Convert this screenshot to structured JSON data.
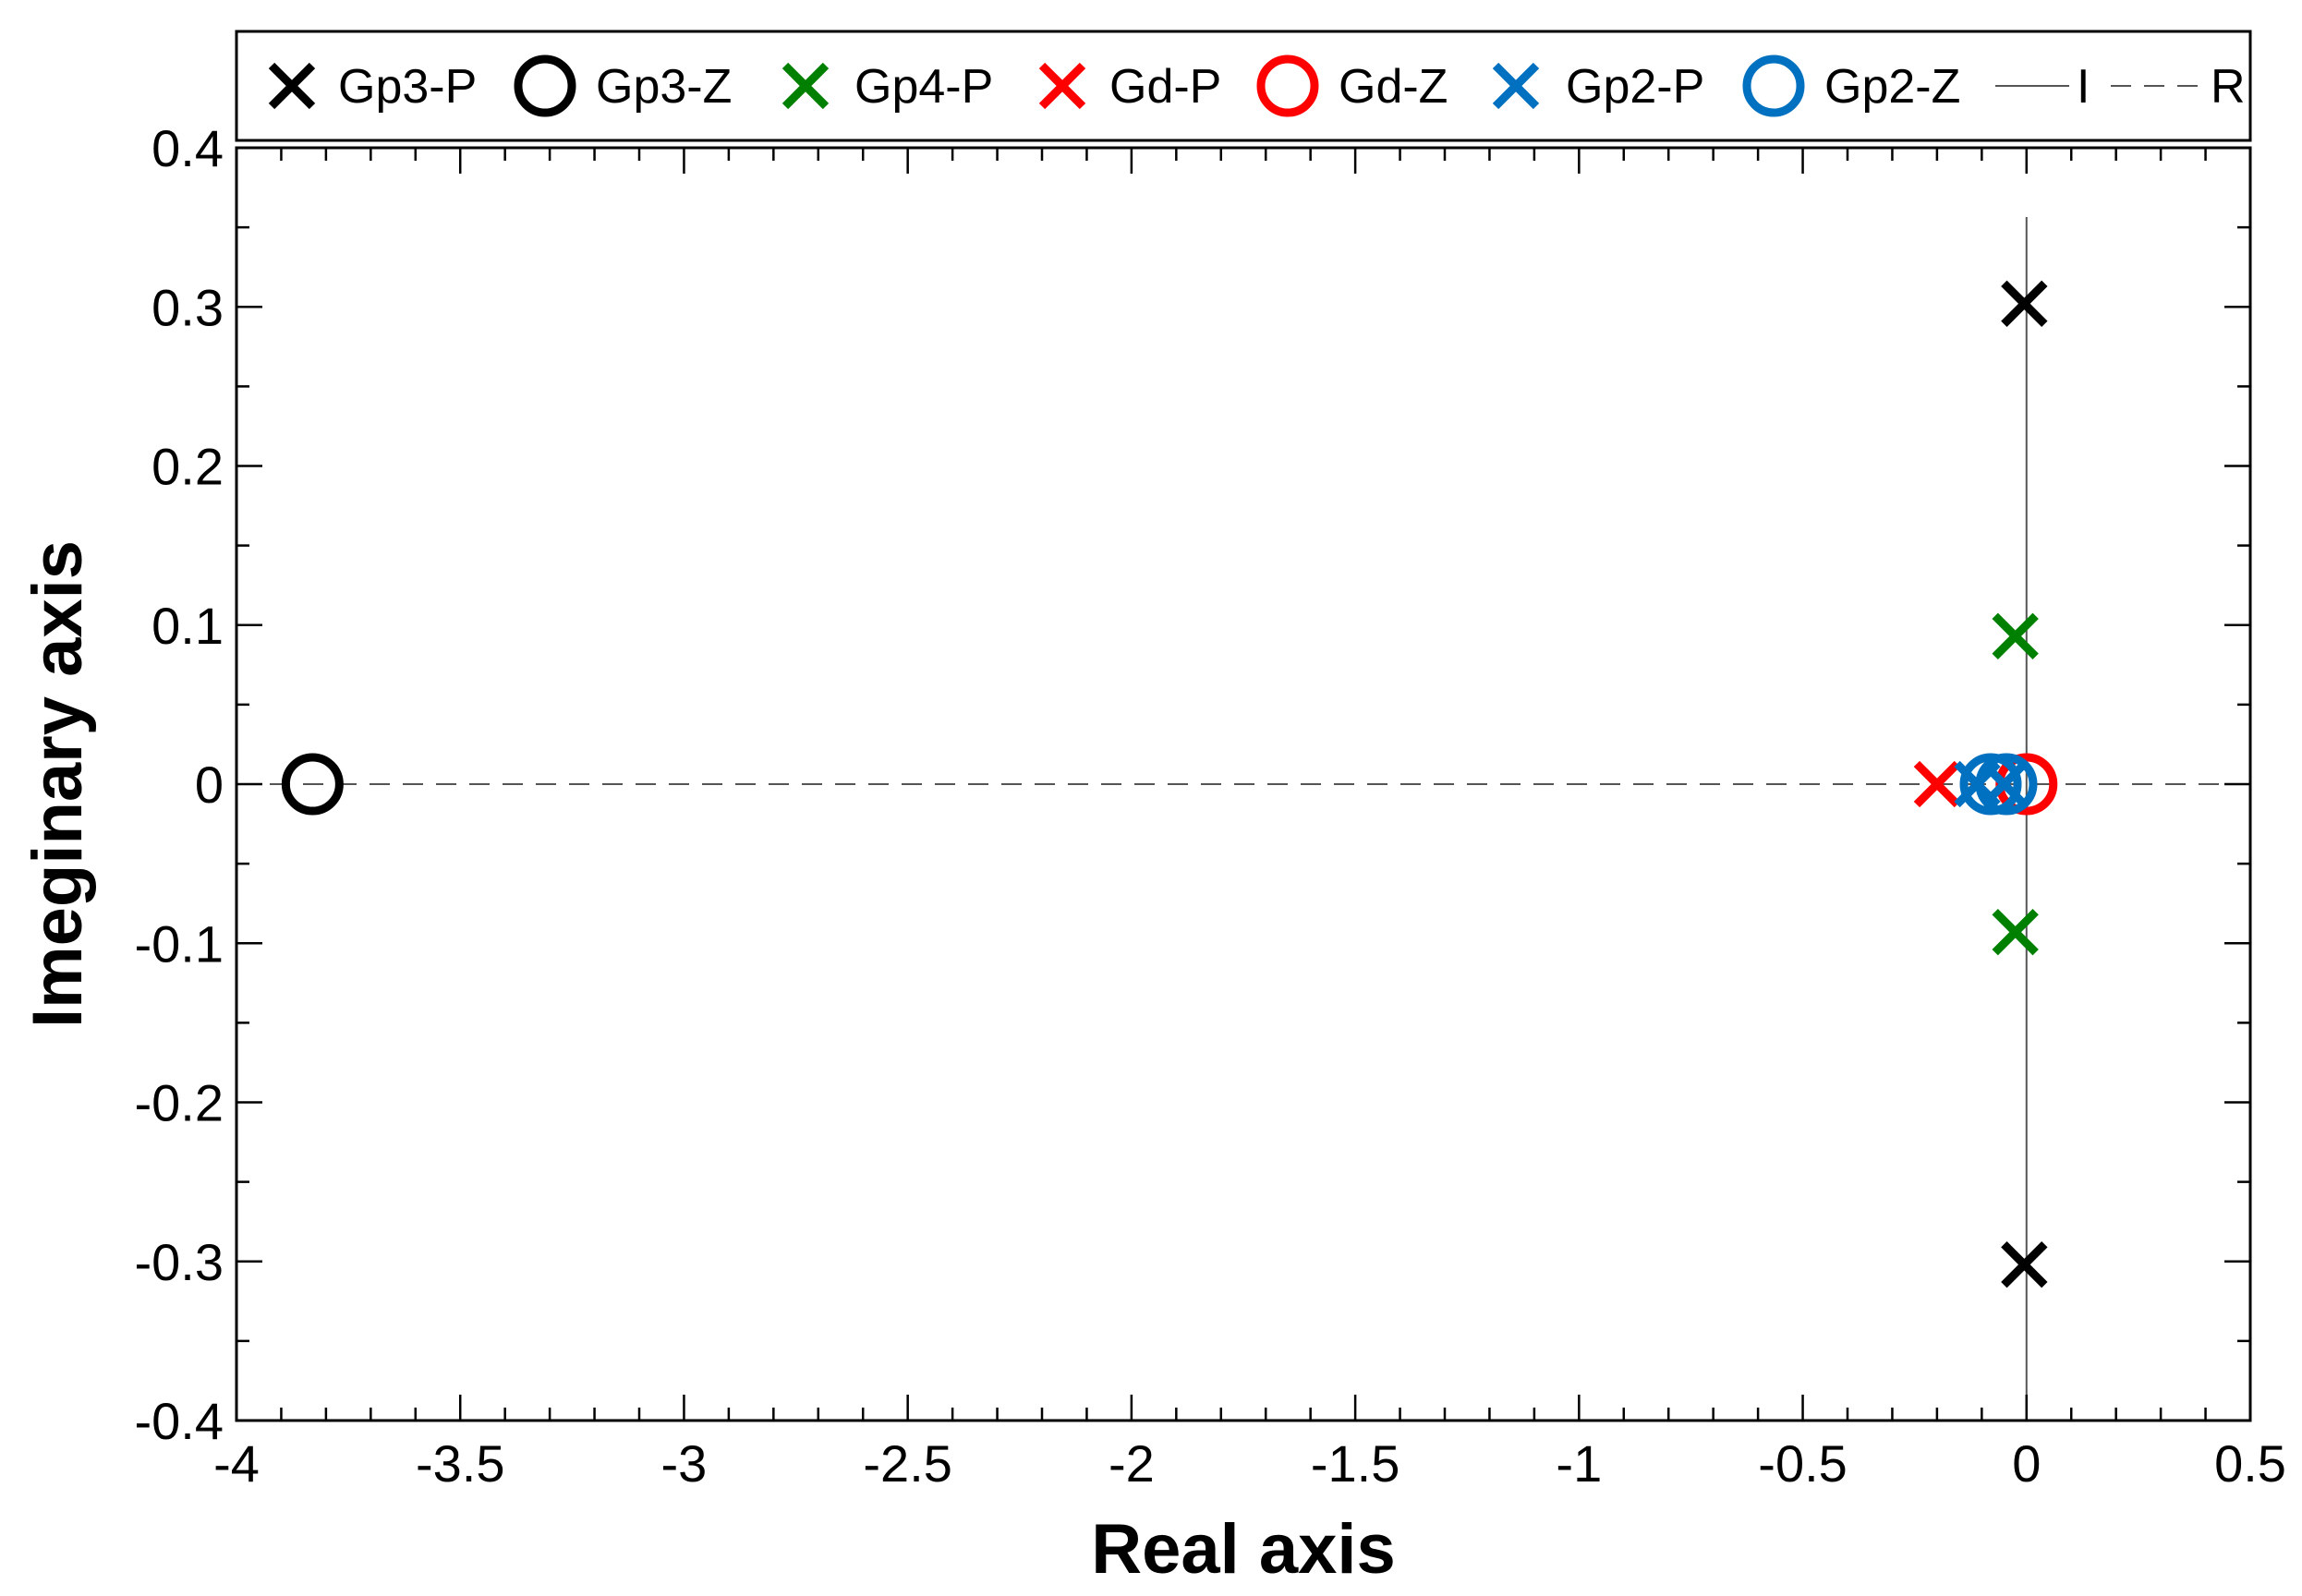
{
  "chart_data": {
    "type": "scatter",
    "xlabel": "Real axis",
    "ylabel": "Imeginary axis",
    "xlim": [
      -4,
      0.5
    ],
    "ylim": [
      -0.4,
      0.4
    ],
    "x_ticks": [
      -4,
      -3.5,
      -3,
      -2.5,
      -2,
      -1.5,
      -1,
      -0.5,
      0,
      0.5
    ],
    "x_tick_labels": [
      "-4",
      "-3.5",
      "-3",
      "-2.5",
      "-2",
      "-1.5",
      "-1",
      "-0.5",
      "0",
      "0.5"
    ],
    "y_ticks": [
      -0.4,
      -0.3,
      -0.2,
      -0.1,
      0,
      0.1,
      0.2,
      0.3,
      0.4
    ],
    "y_tick_labels": [
      "-0.4",
      "-0.3",
      "-0.2",
      "-0.1",
      "0",
      "0.1",
      "0.2",
      "0.3",
      "0.4"
    ],
    "grid": false,
    "legend_position": "top",
    "series": [
      {
        "name": "Gp3-P",
        "marker": "x",
        "color": "#000000",
        "points": [
          [
            -0.005,
            0.302
          ],
          [
            -0.005,
            -0.302
          ]
        ]
      },
      {
        "name": "Gp3-Z",
        "marker": "o",
        "color": "#000000",
        "points": [
          [
            -3.83,
            0.0
          ]
        ]
      },
      {
        "name": "Gp4-P",
        "marker": "x",
        "color": "#008000",
        "points": [
          [
            -0.025,
            0.093
          ],
          [
            -0.025,
            -0.093
          ]
        ]
      },
      {
        "name": "Gd-P",
        "marker": "x",
        "color": "#ff0000",
        "points": [
          [
            -0.2,
            0.0
          ]
        ]
      },
      {
        "name": "Gd-Z",
        "marker": "o",
        "color": "#ff0000",
        "points": [
          [
            0.0,
            0.0
          ]
        ]
      },
      {
        "name": "Gp2-P",
        "marker": "x",
        "color": "#0070c0",
        "points": [
          [
            -0.11,
            0.0
          ],
          [
            -0.05,
            0.0
          ]
        ]
      },
      {
        "name": "Gp2-Z",
        "marker": "o",
        "color": "#0070c0",
        "points": [
          [
            -0.08,
            0.0
          ],
          [
            -0.045,
            0.0
          ]
        ]
      }
    ],
    "reference_lines": [
      {
        "name": "I",
        "style": "solid",
        "orientation": "vertical",
        "value": 0
      },
      {
        "name": "R",
        "style": "dashed",
        "orientation": "horizontal",
        "value": 0
      }
    ]
  }
}
